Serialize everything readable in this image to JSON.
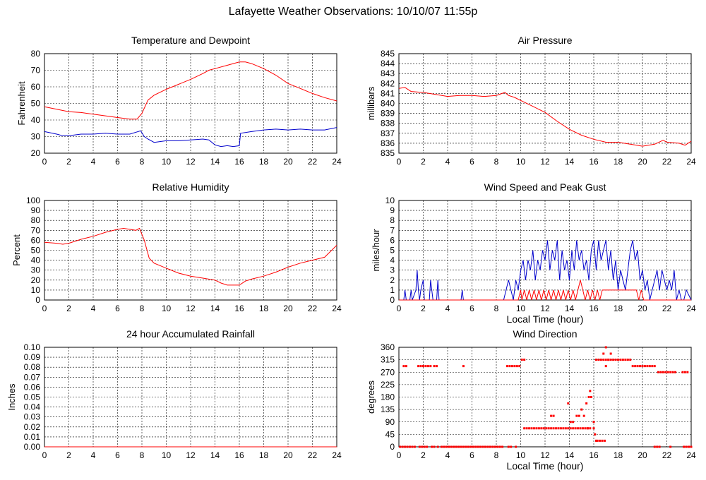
{
  "page_title": "Lafayette Weather Observations: 10/10/07 11:55p",
  "colors": {
    "red": "#ff0000",
    "blue": "#0000cc",
    "grid": "#000000",
    "frame": "#000000"
  },
  "chart_data": [
    {
      "id": "temperature",
      "type": "line",
      "title": "Temperature and Dewpoint",
      "xlabel": "",
      "ylabel": "Fahrenheit",
      "xlim": [
        0,
        24
      ],
      "ylim": [
        20,
        80
      ],
      "xticks": [
        0,
        2,
        4,
        6,
        8,
        10,
        12,
        14,
        16,
        18,
        20,
        22,
        24
      ],
      "yticks": [
        20,
        30,
        40,
        50,
        60,
        70,
        80
      ],
      "grid": true,
      "series": [
        {
          "color": "#ff0000",
          "x": [
            0,
            1,
            2,
            3,
            4,
            5,
            6,
            7,
            7.6,
            8,
            8.5,
            9,
            10,
            11,
            12,
            13,
            13.5,
            14,
            15,
            15.5,
            16,
            16.5,
            17,
            18,
            19,
            20,
            21,
            22,
            23,
            24
          ],
          "y": [
            48,
            46.5,
            45,
            44.5,
            43.5,
            42.5,
            41.5,
            40.5,
            40.5,
            44,
            52,
            55,
            58.5,
            61.5,
            64.5,
            68,
            70,
            71,
            73,
            74,
            75,
            75,
            74,
            71,
            67,
            62,
            59,
            56,
            53.5,
            51.5
          ]
        },
        {
          "color": "#0000cc",
          "x": [
            0,
            1,
            1.5,
            2,
            3,
            4,
            5,
            6,
            7,
            7.9,
            8.2,
            8.5,
            9,
            10,
            11,
            12,
            13,
            13.5,
            14,
            14.5,
            15,
            15.5,
            16,
            16.1,
            17,
            18,
            19,
            20,
            21,
            22,
            23,
            24
          ],
          "y": [
            33,
            31.5,
            30.5,
            30.5,
            31.5,
            31.5,
            32,
            31.5,
            31.5,
            33.5,
            30,
            28.5,
            26.5,
            27.5,
            27.5,
            28,
            28.5,
            28,
            25,
            24,
            24.5,
            24,
            24.5,
            32,
            33,
            34,
            34.5,
            34,
            34.5,
            34,
            34,
            35.5
          ]
        }
      ]
    },
    {
      "id": "pressure",
      "type": "line",
      "title": "Air Pressure",
      "xlabel": "",
      "ylabel": "millibars",
      "xlim": [
        0,
        24
      ],
      "ylim": [
        835,
        845
      ],
      "xticks": [
        0,
        2,
        4,
        6,
        8,
        10,
        12,
        14,
        16,
        18,
        20,
        22,
        24
      ],
      "yticks": [
        835,
        836,
        837,
        838,
        839,
        840,
        841,
        842,
        843,
        844,
        845
      ],
      "grid": true,
      "series": [
        {
          "color": "#ff0000",
          "x": [
            0,
            0.5,
            1,
            2,
            3,
            4,
            5,
            6,
            7,
            8,
            8.7,
            9,
            9.5,
            10,
            11,
            12,
            13,
            14,
            15,
            16,
            17,
            18,
            19,
            20,
            21,
            21.7,
            22,
            23,
            23.5,
            24
          ],
          "y": [
            841.5,
            841.6,
            841.2,
            841.1,
            840.9,
            840.7,
            840.8,
            840.8,
            840.7,
            840.8,
            841.1,
            840.8,
            840.6,
            840.3,
            839.7,
            839.1,
            838.2,
            837.4,
            836.8,
            836.4,
            836.1,
            836.1,
            835.9,
            835.7,
            835.9,
            836.3,
            836.1,
            836.0,
            835.8,
            836.2
          ]
        }
      ]
    },
    {
      "id": "humidity",
      "type": "line",
      "title": "Relative Humidity",
      "xlabel": "",
      "ylabel": "Percent",
      "xlim": [
        0,
        24
      ],
      "ylim": [
        0,
        100
      ],
      "xticks": [
        0,
        2,
        4,
        6,
        8,
        10,
        12,
        14,
        16,
        18,
        20,
        22,
        24
      ],
      "yticks": [
        0,
        10,
        20,
        30,
        40,
        50,
        60,
        70,
        80,
        90,
        100
      ],
      "grid": true,
      "series": [
        {
          "color": "#ff0000",
          "x": [
            0,
            1,
            1.5,
            2,
            3,
            4,
            5,
            6,
            6.5,
            7,
            7.5,
            7.8,
            8.2,
            8.6,
            9,
            10,
            11,
            12,
            13,
            14,
            14.5,
            15,
            16,
            16.5,
            17,
            18,
            19,
            20,
            21,
            22,
            23,
            24
          ],
          "y": [
            58,
            57,
            56,
            57,
            61,
            64,
            68,
            71,
            72,
            71,
            70,
            72,
            60,
            42,
            37,
            32,
            27,
            24,
            22,
            20,
            17,
            15,
            15,
            19,
            21,
            24,
            28,
            33,
            37,
            40,
            43,
            55
          ]
        }
      ]
    },
    {
      "id": "wind_speed",
      "type": "line",
      "title": "Wind Speed and Peak Gust",
      "xlabel": "Local Time (hour)",
      "ylabel": "miles/hour",
      "xlim": [
        0,
        24
      ],
      "ylim": [
        0,
        10
      ],
      "xticks": [
        0,
        2,
        4,
        6,
        8,
        10,
        12,
        14,
        16,
        18,
        20,
        22,
        24
      ],
      "yticks": [
        0,
        1,
        2,
        3,
        4,
        5,
        6,
        7,
        8,
        9,
        10
      ],
      "grid": true,
      "series": [
        {
          "color": "#0000cc",
          "x": [
            0,
            0.4,
            0.5,
            0.6,
            0.9,
            1.0,
            1.1,
            1.4,
            1.5,
            1.6,
            1.7,
            1.8,
            2.0,
            2.1,
            2.5,
            2.6,
            2.8,
            3.1,
            3.2,
            3.3,
            5.1,
            5.2,
            5.3,
            8.6,
            8.8,
            9.0,
            9.2,
            9.4,
            9.6,
            9.8,
            10.0,
            10.2,
            10.4,
            10.6,
            10.8,
            11.0,
            11.2,
            11.4,
            11.6,
            11.8,
            12.0,
            12.2,
            12.4,
            12.6,
            12.8,
            13.0,
            13.2,
            13.4,
            13.6,
            13.8,
            14.0,
            14.2,
            14.4,
            14.6,
            14.8,
            15.0,
            15.2,
            15.4,
            15.6,
            15.8,
            16.0,
            16.2,
            16.4,
            16.6,
            16.8,
            17.0,
            17.2,
            17.4,
            17.6,
            17.8,
            18.0,
            18.2,
            18.4,
            18.6,
            18.8,
            19.0,
            19.2,
            19.4,
            19.6,
            19.8,
            20.0,
            20.2,
            20.4,
            20.6,
            20.8,
            21.0,
            21.2,
            21.4,
            21.6,
            21.8,
            22.0,
            22.2,
            22.4,
            22.6,
            22.8,
            23.0,
            23.2,
            23.4,
            23.6,
            24
          ],
          "y": [
            0,
            0,
            1,
            0,
            0,
            1,
            0,
            1,
            3,
            1,
            0,
            1,
            2,
            0,
            0,
            2,
            0,
            0,
            2,
            0,
            0,
            1,
            0,
            0,
            1,
            2,
            1,
            0,
            2,
            1,
            3,
            4,
            2,
            4,
            3,
            5,
            2,
            4,
            3,
            5,
            4,
            6,
            3,
            5,
            4,
            6,
            2,
            5,
            3,
            4,
            2,
            5,
            3,
            6,
            4,
            5,
            3,
            4,
            2,
            5,
            6,
            3,
            6,
            4,
            5,
            6,
            3,
            5,
            2,
            4,
            1,
            3,
            2,
            1,
            3,
            5,
            6,
            4,
            5,
            2,
            3,
            1,
            2,
            0,
            1,
            2,
            3,
            1,
            3,
            2,
            1,
            2,
            1,
            3,
            0,
            1,
            0,
            0,
            1,
            0
          ]
        },
        {
          "color": "#ff0000",
          "x": [
            0,
            9.8,
            10.0,
            10.1,
            10.3,
            10.5,
            10.7,
            10.9,
            11.1,
            11.3,
            11.5,
            11.7,
            11.9,
            12.1,
            12.3,
            12.5,
            12.7,
            12.9,
            13.1,
            13.3,
            13.5,
            13.7,
            13.9,
            14.1,
            14.3,
            14.5,
            14.7,
            14.9,
            15.1,
            15.3,
            15.5,
            15.7,
            15.9,
            16.1,
            16.3,
            16.5,
            16.7,
            16.9,
            17.1,
            17.3,
            17.5,
            17.7,
            17.9,
            18.1,
            19.5,
            19.7,
            19.9,
            20.1,
            20.3,
            24
          ],
          "y": [
            0,
            0,
            1,
            0,
            1,
            0,
            1,
            0,
            1,
            0,
            1,
            0,
            1,
            0,
            1,
            0,
            1,
            0,
            1,
            0,
            1,
            0,
            1,
            0,
            1,
            0,
            1,
            2,
            1,
            0,
            1,
            0,
            1,
            0,
            1,
            0,
            1,
            1,
            1,
            1,
            1,
            1,
            1,
            1,
            1,
            0,
            1,
            0,
            0,
            0
          ]
        }
      ]
    },
    {
      "id": "rainfall",
      "type": "line",
      "title": "24 hour Accumulated Rainfall",
      "xlabel": "",
      "ylabel": "Inches",
      "xlim": [
        0,
        24
      ],
      "ylim": [
        0,
        0.1
      ],
      "xticks": [
        0,
        2,
        4,
        6,
        8,
        10,
        12,
        14,
        16,
        18,
        20,
        22,
        24
      ],
      "yticks": [
        0.0,
        0.01,
        0.02,
        0.03,
        0.04,
        0.05,
        0.06,
        0.07,
        0.08,
        0.09,
        0.1
      ],
      "ytick_labels": [
        "0.00",
        "0.01",
        "0.02",
        "0.03",
        "0.04",
        "0.05",
        "0.06",
        "0.07",
        "0.08",
        "0.09",
        "0.10"
      ],
      "grid": true,
      "series": [
        {
          "color": "#ff0000",
          "x": [
            0,
            24
          ],
          "y": [
            0,
            0
          ]
        }
      ]
    },
    {
      "id": "wind_direction",
      "type": "scatter",
      "title": "Wind Direction",
      "xlabel": "Local Time (hour)",
      "ylabel": "degrees",
      "xlim": [
        0,
        24
      ],
      "ylim": [
        0,
        360
      ],
      "xticks": [
        0,
        2,
        4,
        6,
        8,
        10,
        12,
        14,
        16,
        18,
        20,
        22,
        24
      ],
      "yticks": [
        0,
        45,
        90,
        135,
        180,
        225,
        270,
        315,
        360
      ],
      "grid": true,
      "series": [
        {
          "color": "#ff0000",
          "x": [
            0.1,
            0.3,
            0.5,
            0.7,
            0.9,
            1.1,
            1.3,
            0.4,
            0.6,
            1.6,
            1.8,
            2.0,
            2.2,
            2.4,
            2.6,
            2.9,
            3.1,
            1.7,
            1.9,
            2.1,
            2.3,
            2.7,
            2.9,
            3.2,
            3.5,
            3.7,
            3.9,
            4.1,
            4.3,
            4.5,
            4.7,
            4.9,
            5.1,
            5.3,
            5.5,
            5.7,
            5.9,
            6.1,
            6.3,
            6.5,
            6.7,
            6.9,
            7.1,
            7.3,
            7.5,
            7.7,
            7.9,
            8.1,
            8.3,
            8.5,
            5.3,
            8.9,
            9.1,
            9.3,
            9.5,
            9.7,
            9.9,
            10.1,
            10.3,
            9.0,
            9.2,
            9.6,
            10.3,
            10.5,
            10.7,
            10.9,
            11.1,
            11.3,
            11.5,
            11.7,
            11.9,
            12.1,
            12.3,
            12.5,
            12.7,
            12.9,
            13.1,
            13.3,
            13.5,
            13.7,
            13.9,
            14.1,
            14.3,
            14.5,
            14.7,
            14.9,
            15.1,
            15.3,
            15.5,
            15.7,
            16.0,
            12.5,
            12.7,
            13.9,
            14.1,
            14.3,
            14.6,
            14.8,
            15.0,
            15.2,
            15.4,
            15.5,
            15.6,
            15.7,
            15.8,
            16.0,
            16.1,
            16.2,
            16.3,
            16.5,
            16.7,
            16.9,
            16.2,
            16.4,
            16.6,
            16.8,
            17.0,
            17.2,
            17.4,
            17.6,
            17.8,
            18.0,
            18.2,
            18.4,
            18.6,
            18.8,
            19.0,
            16.8,
            17.0,
            17.2,
            17.4,
            17.0,
            19.2,
            19.4,
            19.6,
            19.8,
            20.0,
            20.2,
            20.4,
            20.6,
            20.8,
            21.0,
            21.3,
            21.5,
            21.7,
            21.9,
            22.1,
            22.3,
            22.5,
            22.7,
            23.3,
            23.5,
            23.7,
            21.0,
            21.2,
            21.4,
            22.3,
            23.4,
            23.6,
            23.8,
            24.0
          ],
          "y": [
            0,
            0,
            0,
            0,
            0,
            0,
            0,
            292,
            292,
            292,
            292,
            292,
            292,
            292,
            292,
            292,
            292,
            0,
            0,
            0,
            0,
            0,
            0,
            0,
            0,
            0,
            0,
            0,
            0,
            0,
            0,
            0,
            0,
            0,
            0,
            0,
            0,
            0,
            0,
            0,
            0,
            0,
            0,
            0,
            0,
            0,
            0,
            0,
            0,
            0,
            292,
            292,
            292,
            292,
            292,
            292,
            292,
            315,
            315,
            0,
            0,
            0,
            67,
            67,
            67,
            67,
            67,
            67,
            67,
            67,
            67,
            67,
            67,
            67,
            67,
            67,
            67,
            67,
            67,
            67,
            67,
            67,
            67,
            67,
            67,
            67,
            67,
            67,
            67,
            67,
            67,
            112,
            112,
            157,
            90,
            90,
            112,
            112,
            135,
            112,
            157,
            67,
            180,
            202,
            180,
            90,
            45,
            22,
            22,
            22,
            22,
            22,
            315,
            315,
            315,
            315,
            315,
            315,
            315,
            315,
            315,
            315,
            315,
            315,
            315,
            315,
            315,
            337,
            360,
            315,
            337,
            292,
            292,
            292,
            292,
            292,
            292,
            292,
            292,
            292,
            292,
            292,
            270,
            270,
            270,
            270,
            270,
            270,
            270,
            270,
            270,
            270,
            270,
            0,
            0,
            0,
            0,
            0,
            0,
            0,
            0
          ]
        }
      ]
    }
  ]
}
